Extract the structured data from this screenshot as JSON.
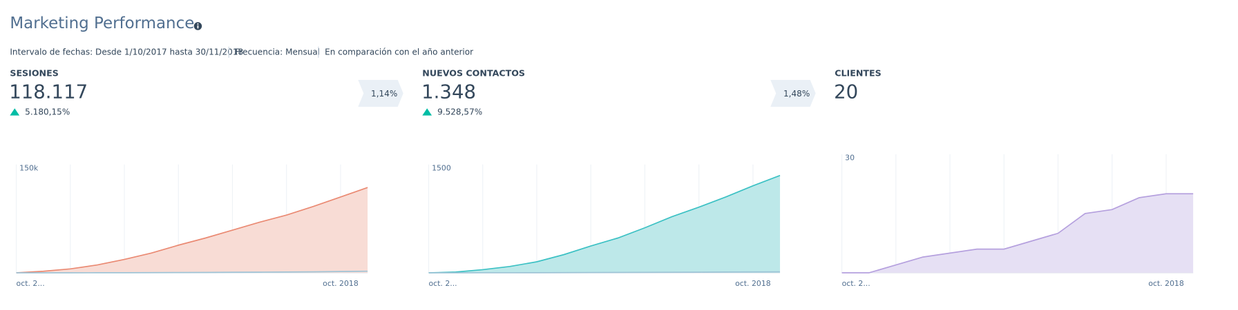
{
  "header": {
    "title": "Marketing Performance",
    "filters": [
      "Intervalo de fechas: Desde 1/10/2017 hasta 30/11/2018",
      "Frecuencia: Mensual",
      "En comparación con el año anterior"
    ]
  },
  "kpis": [
    {
      "label": "SESIONES",
      "value": "118.117",
      "change": "5.180,15%"
    },
    {
      "label": "NUEVOS CONTACTOS",
      "value": "1.348",
      "change": "9.528,57%"
    },
    {
      "label": "CLIENTES",
      "value": "20"
    }
  ],
  "comparisons": [
    "1,14%",
    "1,48%"
  ],
  "chart_data": [
    {
      "type": "area",
      "categories": [
        "oct. 2...",
        null,
        null,
        null,
        null,
        null,
        null,
        null,
        null,
        null,
        null,
        null,
        "oct. 2018",
        null
      ],
      "series": [
        {
          "color": "#ea8a73",
          "fill": "#f8dcd5",
          "values": [
            0,
            2190,
            5475,
            10950,
            18600,
            27400,
            38300,
            48200,
            59100,
            70100,
            80000,
            92000,
            105000,
            118117
          ]
        },
        {
          "color": "#9fc4d6",
          "values": [
            0,
            20,
            60,
            120,
            200,
            300,
            420,
            560,
            720,
            900,
            1120,
            1400,
            1800,
            2240
          ]
        }
      ],
      "ylim": [
        0,
        150000
      ],
      "yticks": [
        {
          "value": 150000,
          "label": "150k"
        }
      ],
      "grid": true
    },
    {
      "type": "area",
      "categories": [
        "oct. 2...",
        null,
        null,
        null,
        null,
        null,
        null,
        null,
        null,
        null,
        null,
        null,
        "oct. 2018",
        null
      ],
      "series": [
        {
          "color": "#3cc1c4",
          "fill": "#bde8e9",
          "values": [
            0,
            11,
            44,
            88,
            153,
            252,
            372,
            482,
            624,
            777,
            909,
            1051,
            1205,
            1348
          ]
        },
        {
          "color": "#9fc4d6",
          "values": [
            0,
            0,
            1,
            1,
            2,
            3,
            4,
            5,
            6,
            8,
            9,
            11,
            12,
            14
          ]
        }
      ],
      "ylim": [
        0,
        1500
      ],
      "yticks": [
        1500
      ],
      "grid": true
    },
    {
      "type": "area",
      "categories": [
        "oct. 2...",
        null,
        null,
        null,
        null,
        null,
        null,
        null,
        null,
        null,
        null,
        null,
        "oct. 2018",
        null
      ],
      "series": [
        {
          "color": "#b5a0de",
          "fill": "#e6e0f4",
          "values": [
            0,
            0,
            2,
            4,
            5,
            6,
            6,
            8,
            10,
            15,
            16,
            19,
            20,
            20
          ]
        }
      ],
      "ylim": [
        0,
        30
      ],
      "yticks": [
        30
      ],
      "grid": true
    }
  ]
}
